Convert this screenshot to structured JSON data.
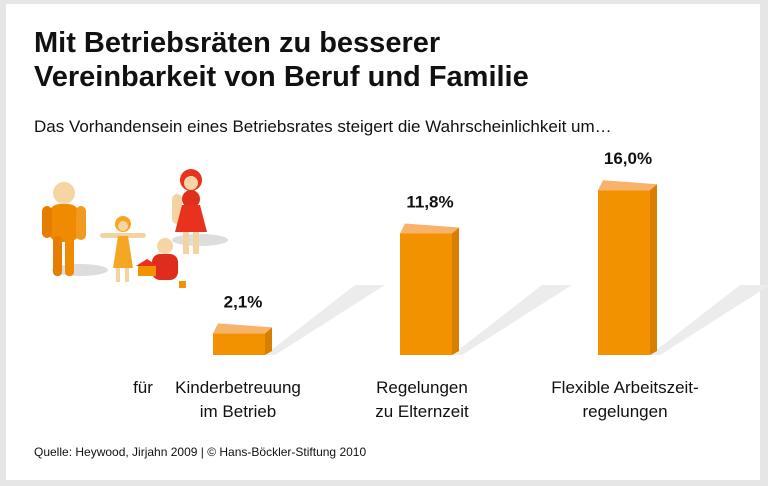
{
  "title_line1": "Mit Betriebsräten zu besserer",
  "title_line2": "Vereinbarkeit von Beruf und Familie",
  "subtitle": "Das Vorhandensein eines Betriebsrates steigert die Wahrscheinlichkeit um…",
  "prefix": "für",
  "source": "Quelle: Heywood, Jirjahn 2009 | © Hans-Böckler-Stiftung 2010",
  "colors": {
    "bar_front": "#f39200",
    "bar_top": "#f7b36a",
    "bar_side": "#d97f00"
  },
  "chart_data": {
    "type": "bar",
    "categories": [
      {
        "line1": "Kinderbetreuung",
        "line2": "im Betrieb"
      },
      {
        "line1": "Regelungen",
        "line2": "zu Elternzeit"
      },
      {
        "line1": "Flexible Arbeitszeit-",
        "line2": "regelungen"
      }
    ],
    "values": [
      2.1,
      11.8,
      16.0
    ],
    "labels": [
      "2,1%",
      "11,8%",
      "16,0%"
    ],
    "unit": "%"
  }
}
